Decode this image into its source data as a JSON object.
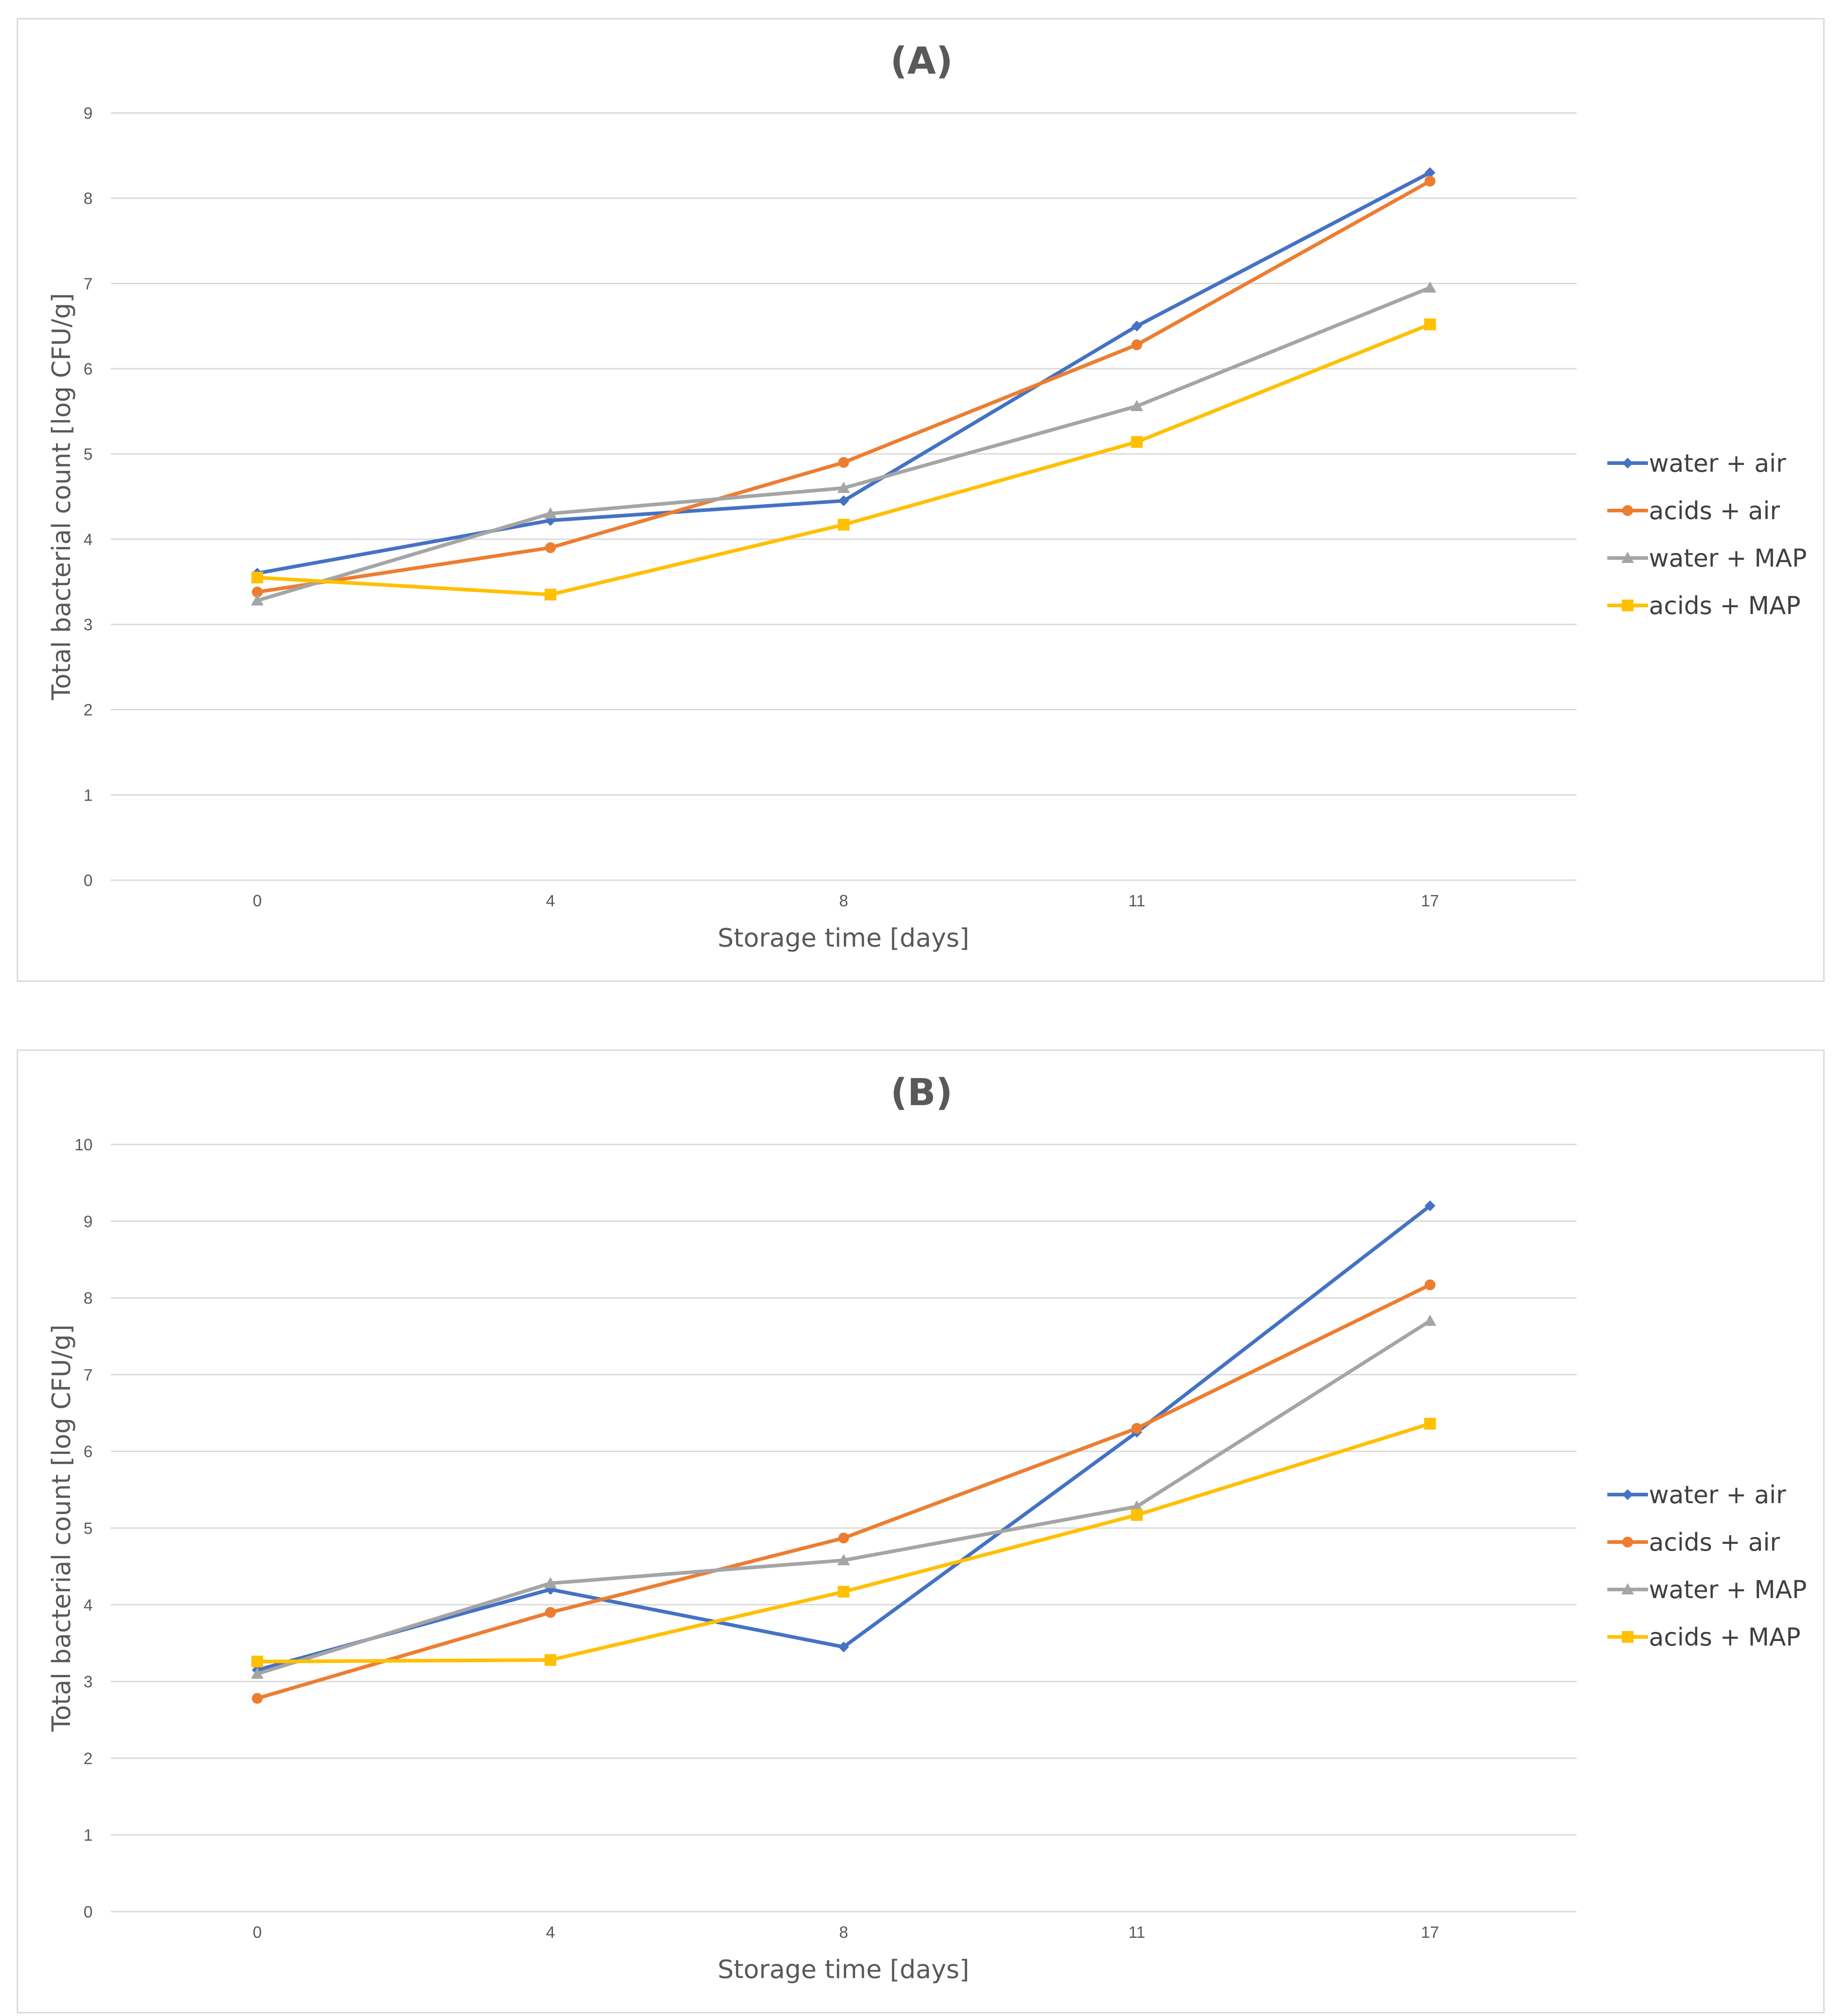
{
  "chart_data": [
    {
      "type": "line",
      "title": "(A)",
      "xlabel": "Storage time [days]",
      "ylabel": "Total bacterial count [log CFU/g]",
      "categories": [
        "0",
        "4",
        "8",
        "11",
        "17"
      ],
      "ylim": [
        0,
        9
      ],
      "yticks": [
        "0",
        "1",
        "2",
        "3",
        "4",
        "5",
        "6",
        "7",
        "8",
        "9"
      ],
      "legend_position": "right",
      "series": [
        {
          "name": "water + air",
          "color": "#4472C4",
          "marker": "diamond",
          "values": [
            3.6,
            4.22,
            4.45,
            6.5,
            8.3
          ]
        },
        {
          "name": "acids + air",
          "color": "#ED7D31",
          "marker": "circle",
          "values": [
            3.38,
            3.9,
            4.9,
            6.28,
            8.2
          ]
        },
        {
          "name": "water + MAP",
          "color": "#A5A5A5",
          "marker": "triangle",
          "values": [
            3.28,
            4.3,
            4.6,
            5.56,
            6.95
          ]
        },
        {
          "name": "acids + MAP",
          "color": "#FFC000",
          "marker": "square",
          "values": [
            3.55,
            3.35,
            4.17,
            5.14,
            6.52
          ]
        }
      ]
    },
    {
      "type": "line",
      "title": "(B)",
      "xlabel": "Storage time [days]",
      "ylabel": "Total bacterial count [log CFU/g]",
      "categories": [
        "0",
        "4",
        "8",
        "11",
        "17"
      ],
      "ylim": [
        0,
        10
      ],
      "yticks": [
        "0",
        "1",
        "2",
        "3",
        "4",
        "5",
        "6",
        "7",
        "8",
        "9",
        "10"
      ],
      "legend_position": "right",
      "series": [
        {
          "name": "water + air",
          "color": "#4472C4",
          "marker": "diamond",
          "values": [
            3.15,
            4.2,
            3.45,
            6.25,
            9.2
          ]
        },
        {
          "name": "acids + air",
          "color": "#ED7D31",
          "marker": "circle",
          "values": [
            2.78,
            3.9,
            4.87,
            6.3,
            8.17
          ]
        },
        {
          "name": "water + MAP",
          "color": "#A5A5A5",
          "marker": "triangle",
          "values": [
            3.1,
            4.28,
            4.58,
            5.28,
            7.7
          ]
        },
        {
          "name": "acids + MAP",
          "color": "#FFC000",
          "marker": "square",
          "values": [
            3.26,
            3.28,
            4.17,
            5.17,
            6.36
          ]
        }
      ]
    }
  ]
}
